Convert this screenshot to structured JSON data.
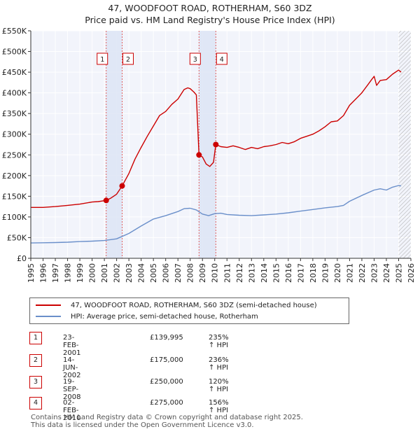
{
  "title_line1": "47, WOODFOOT ROAD, ROTHERHAM, S60 3DZ",
  "title_line2": "Price paid vs. HM Land Registry's House Price Index (HPI)",
  "legend": [
    {
      "label": "47, WOODFOOT ROAD, ROTHERHAM, S60 3DZ (semi-detached house)",
      "color": "#cc0000"
    },
    {
      "label": "HPI: Average price, semi-detached house, Rotherham",
      "color": "#6a8fca"
    }
  ],
  "transactions": [
    {
      "num": "1",
      "date": "23-FEB-2001",
      "price": "£139,995",
      "hpi": "235% ↑ HPI"
    },
    {
      "num": "2",
      "date": "14-JUN-2002",
      "price": "£175,000",
      "hpi": "236% ↑ HPI"
    },
    {
      "num": "3",
      "date": "19-SEP-2008",
      "price": "£250,000",
      "hpi": "120% ↑ HPI"
    },
    {
      "num": "4",
      "date": "02-FEB-2010",
      "price": "£275,000",
      "hpi": "156% ↑ HPI"
    }
  ],
  "footer_line1": "Contains HM Land Registry data © Crown copyright and database right 2025.",
  "footer_line2": "This data is licensed under the Open Government Licence v3.0.",
  "chart_data": {
    "type": "line",
    "title": "47, WOODFOOT ROAD, ROTHERHAM, S60 3DZ — Price paid vs. HM Land Registry's House Price Index (HPI)",
    "xlim": [
      1995,
      2026
    ],
    "ylim": [
      0,
      550000
    ],
    "x_ticks": [
      "1995",
      "1996",
      "1997",
      "1998",
      "1999",
      "2000",
      "2001",
      "2002",
      "2003",
      "2004",
      "2005",
      "2006",
      "2007",
      "2008",
      "2009",
      "2010",
      "2011",
      "2012",
      "2013",
      "2014",
      "2015",
      "2016",
      "2017",
      "2018",
      "2019",
      "2020",
      "2021",
      "2022",
      "2023",
      "2024",
      "2025",
      "2026"
    ],
    "y_ticks": [
      {
        "value": 0,
        "label": "£0"
      },
      {
        "value": 50000,
        "label": "£50K"
      },
      {
        "value": 100000,
        "label": "£100K"
      },
      {
        "value": 150000,
        "label": "£150K"
      },
      {
        "value": 200000,
        "label": "£200K"
      },
      {
        "value": 250000,
        "label": "£250K"
      },
      {
        "value": 300000,
        "label": "£300K"
      },
      {
        "value": 350000,
        "label": "£350K"
      },
      {
        "value": 400000,
        "label": "£400K"
      },
      {
        "value": 450000,
        "label": "£450K"
      },
      {
        "value": 500000,
        "label": "£500K"
      },
      {
        "value": 550000,
        "label": "£550K"
      }
    ],
    "shaded_spans": [
      [
        2001.15,
        2002.45
      ],
      [
        2008.72,
        2010.09
      ]
    ],
    "hatched_from": 2025.0,
    "series": [
      {
        "name": "47, WOODFOOT ROAD, ROTHERHAM, S60 3DZ (semi-detached house)",
        "color": "#cc0000",
        "points": [
          [
            1995.0,
            123000
          ],
          [
            1996.0,
            123000
          ],
          [
            1997.0,
            125000
          ],
          [
            1998.0,
            128000
          ],
          [
            1999.0,
            131000
          ],
          [
            2000.0,
            136000
          ],
          [
            2000.5,
            137000
          ],
          [
            2001.15,
            139995
          ],
          [
            2001.5,
            145000
          ],
          [
            2002.0,
            155000
          ],
          [
            2002.45,
            175000
          ],
          [
            2003.0,
            205000
          ],
          [
            2003.5,
            240000
          ],
          [
            2004.0,
            268000
          ],
          [
            2004.5,
            295000
          ],
          [
            2005.0,
            320000
          ],
          [
            2005.5,
            345000
          ],
          [
            2006.0,
            355000
          ],
          [
            2006.5,
            372000
          ],
          [
            2007.0,
            385000
          ],
          [
            2007.5,
            408000
          ],
          [
            2007.8,
            412000
          ],
          [
            2008.0,
            410000
          ],
          [
            2008.3,
            402000
          ],
          [
            2008.5,
            395000
          ],
          [
            2008.72,
            250000
          ],
          [
            2009.0,
            245000
          ],
          [
            2009.3,
            228000
          ],
          [
            2009.6,
            222000
          ],
          [
            2009.9,
            232000
          ],
          [
            2010.09,
            275000
          ],
          [
            2010.5,
            270000
          ],
          [
            2011.0,
            268000
          ],
          [
            2011.5,
            272000
          ],
          [
            2012.0,
            268000
          ],
          [
            2012.5,
            263000
          ],
          [
            2013.0,
            268000
          ],
          [
            2013.5,
            265000
          ],
          [
            2014.0,
            270000
          ],
          [
            2014.5,
            272000
          ],
          [
            2015.0,
            275000
          ],
          [
            2015.5,
            280000
          ],
          [
            2016.0,
            277000
          ],
          [
            2016.5,
            282000
          ],
          [
            2017.0,
            290000
          ],
          [
            2017.5,
            295000
          ],
          [
            2018.0,
            300000
          ],
          [
            2018.5,
            308000
          ],
          [
            2019.0,
            318000
          ],
          [
            2019.5,
            330000
          ],
          [
            2020.0,
            332000
          ],
          [
            2020.5,
            345000
          ],
          [
            2021.0,
            370000
          ],
          [
            2021.5,
            385000
          ],
          [
            2022.0,
            400000
          ],
          [
            2022.5,
            420000
          ],
          [
            2022.8,
            432000
          ],
          [
            2023.0,
            440000
          ],
          [
            2023.2,
            418000
          ],
          [
            2023.5,
            430000
          ],
          [
            2024.0,
            432000
          ],
          [
            2024.5,
            445000
          ],
          [
            2025.0,
            455000
          ],
          [
            2025.2,
            450000
          ]
        ]
      },
      {
        "name": "HPI: Average price, semi-detached house, Rotherham",
        "color": "#6a8fca",
        "points": [
          [
            1995.0,
            37000
          ],
          [
            1996.0,
            37500
          ],
          [
            1997.0,
            38000
          ],
          [
            1998.0,
            39000
          ],
          [
            1999.0,
            40500
          ],
          [
            2000.0,
            41500
          ],
          [
            2001.0,
            43000
          ],
          [
            2002.0,
            47000
          ],
          [
            2003.0,
            60000
          ],
          [
            2004.0,
            78000
          ],
          [
            2005.0,
            95000
          ],
          [
            2006.0,
            103000
          ],
          [
            2007.0,
            113000
          ],
          [
            2007.5,
            120000
          ],
          [
            2008.0,
            121000
          ],
          [
            2008.5,
            117000
          ],
          [
            2009.0,
            107000
          ],
          [
            2009.5,
            103000
          ],
          [
            2010.0,
            108000
          ],
          [
            2010.5,
            109000
          ],
          [
            2011.0,
            106000
          ],
          [
            2012.0,
            104000
          ],
          [
            2013.0,
            103000
          ],
          [
            2014.0,
            105000
          ],
          [
            2015.0,
            107000
          ],
          [
            2016.0,
            110000
          ],
          [
            2017.0,
            114000
          ],
          [
            2018.0,
            118000
          ],
          [
            2019.0,
            122000
          ],
          [
            2020.0,
            125000
          ],
          [
            2020.5,
            128000
          ],
          [
            2021.0,
            138000
          ],
          [
            2022.0,
            152000
          ],
          [
            2023.0,
            165000
          ],
          [
            2023.5,
            168000
          ],
          [
            2024.0,
            165000
          ],
          [
            2024.5,
            172000
          ],
          [
            2025.0,
            176000
          ],
          [
            2025.2,
            175000
          ]
        ]
      }
    ],
    "sales": [
      {
        "num": "1",
        "x": 2001.15,
        "y": 139995
      },
      {
        "num": "2",
        "x": 2002.45,
        "y": 175000
      },
      {
        "num": "3",
        "x": 2008.72,
        "y": 250000
      },
      {
        "num": "4",
        "x": 2010.09,
        "y": 275000
      }
    ]
  }
}
